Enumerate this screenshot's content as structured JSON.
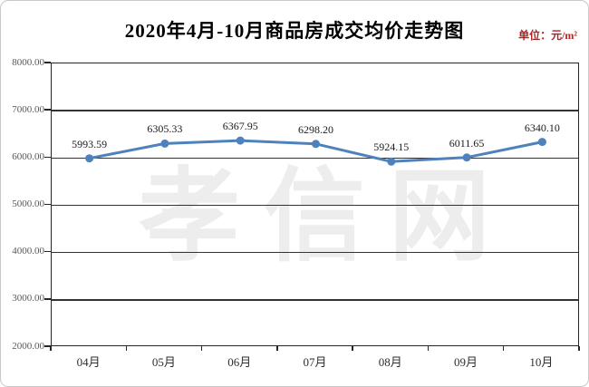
{
  "header": {
    "title": "2020年4月-10月商品房成交均价走势图",
    "unit_label": "单位：元/m²"
  },
  "watermark": "孝信网",
  "chart_data": {
    "type": "line",
    "title": "2020年4月-10月商品房成交均价走势图",
    "unit": "元/m²",
    "categories": [
      "04月",
      "05月",
      "06月",
      "07月",
      "08月",
      "09月",
      "10月"
    ],
    "values": [
      5993.59,
      6305.33,
      6367.95,
      6298.2,
      5924.15,
      6011.65,
      6340.1
    ],
    "point_labels": [
      "5993.59",
      "6305.33",
      "6367.95",
      "6298.20",
      "5924.15",
      "6011.65",
      "6340.10"
    ],
    "y_tick_labels": [
      "8000.00",
      "7000.00",
      "6000.00",
      "5000.00",
      "4000.00",
      "3000.00",
      "2000.00"
    ],
    "ylim": [
      2000,
      8000
    ],
    "y_step": 1000,
    "grid": true,
    "legend": "none",
    "line_color": "#4f81bd",
    "marker": "circle",
    "grid_color": "#333333",
    "axis_color": "#262626"
  }
}
